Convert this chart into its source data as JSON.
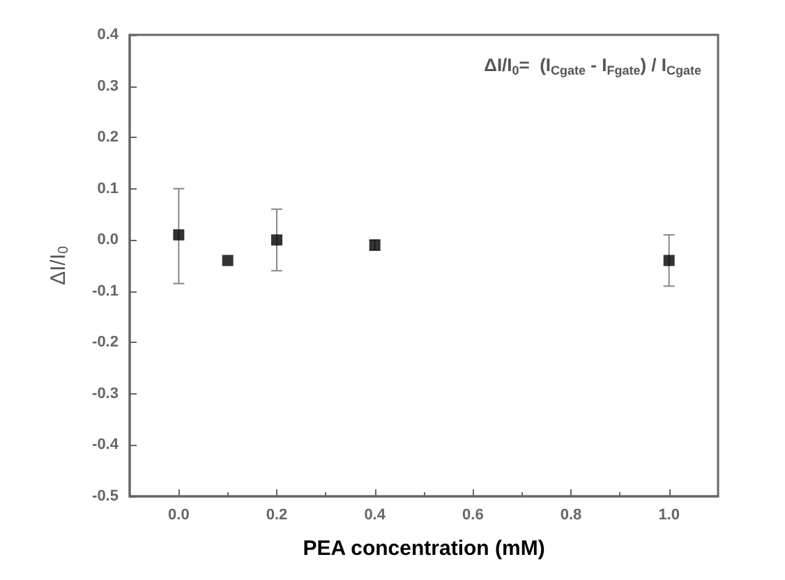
{
  "chart_data": {
    "type": "scatter",
    "xlabel": "PEA concentration (mM)",
    "ylabel": "ΔI/I$_{0}$",
    "annotations": [
      "ΔI/I$_{0}$=  (I$_{Cgate}$ - I$_{Fgate}$) / I$_{Cgate}$"
    ],
    "x": [
      0,
      0.1,
      0.2,
      0.4,
      1.0
    ],
    "values": [
      0.01,
      -0.04,
      0,
      -0.01,
      -0.04
    ],
    "errors": [
      [
        -0.085,
        0.1
      ],
      null,
      0.06,
      0.01,
      0.05
    ],
    "color": "#000000",
    "marker": "square",
    "xlim": [
      -0.1,
      1.1
    ],
    "xticks": [
      {
        "value": 0,
        "label": "0.0"
      },
      0.2,
      0.4,
      0.6,
      0.8,
      {
        "value": 1,
        "label": "1.0"
      }
    ],
    "ylim": [
      -0.5,
      0.4
    ],
    "yticks": [
      -0.5,
      -0.4,
      -0.3,
      -0.2,
      -0.1,
      {
        "value": 0,
        "label": "0.0"
      },
      0.1,
      0.2,
      0.3,
      0.4
    ]
  }
}
